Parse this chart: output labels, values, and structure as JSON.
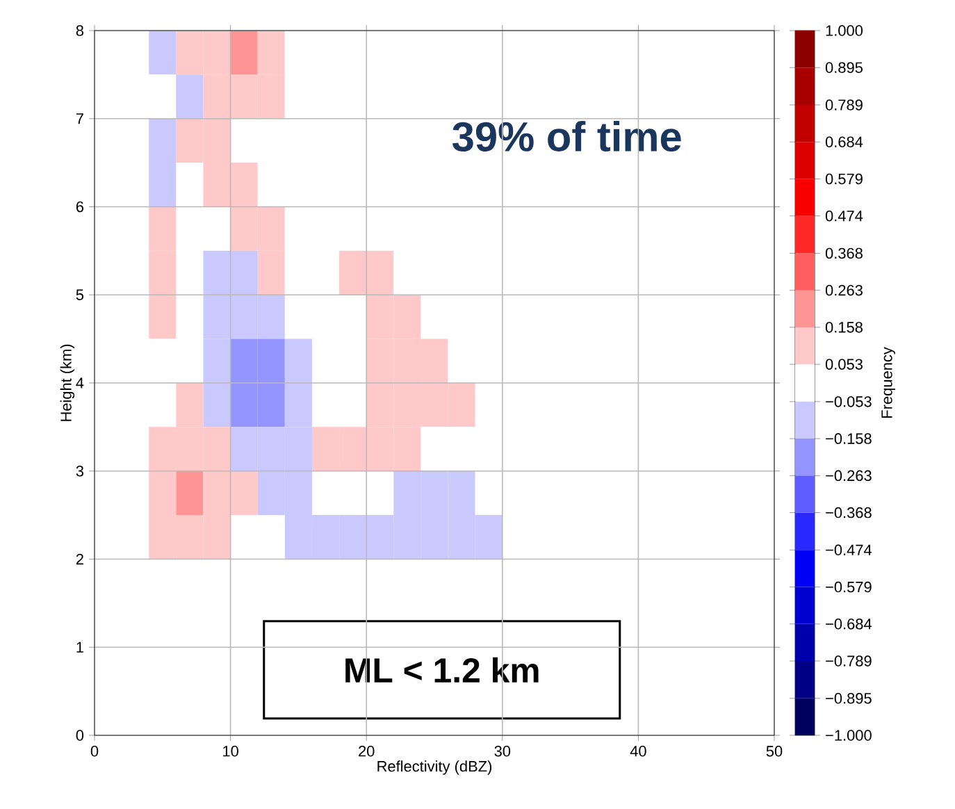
{
  "chart_data": {
    "type": "heatmap",
    "xlabel": "Reflectivity (dBZ)",
    "ylabel": "Height (km)",
    "clabel": "Frequency",
    "annotations": [
      "39% of time",
      "ML < 1.2 km"
    ],
    "x": [
      1,
      3,
      5,
      7,
      9,
      11,
      13,
      15,
      17,
      19,
      21,
      23,
      25,
      27,
      29,
      31,
      33,
      35,
      37,
      39,
      41,
      43,
      45,
      47,
      49
    ],
    "y": [
      7.75,
      7.25,
      6.75,
      6.25,
      5.75,
      5.25,
      4.75,
      4.25,
      3.75,
      3.25,
      2.75,
      2.25,
      1.75,
      1.25,
      0.75,
      0.25
    ],
    "cells": [
      [
        0,
        0,
        -0.1,
        0.1,
        0.1,
        0.2,
        0.1,
        0,
        0,
        0,
        0,
        0,
        0,
        0,
        0,
        0,
        0,
        0,
        0,
        0,
        0,
        0,
        0,
        0,
        0
      ],
      [
        0,
        0,
        0,
        -0.1,
        0.1,
        0.1,
        0.1,
        0,
        0,
        0,
        0,
        0,
        0,
        0,
        0,
        0,
        0,
        0,
        0,
        0,
        0,
        0,
        0,
        0,
        0
      ],
      [
        0,
        0,
        -0.1,
        0.1,
        0.1,
        0,
        0,
        0,
        0,
        0,
        0,
        0,
        0,
        0,
        0,
        0,
        0,
        0,
        0,
        0,
        0,
        0,
        0,
        0,
        0
      ],
      [
        0,
        0,
        -0.1,
        0,
        0.1,
        0.1,
        0,
        0,
        0,
        0,
        0,
        0,
        0,
        0,
        0,
        0,
        0,
        0,
        0,
        0,
        0,
        0,
        0,
        0,
        0
      ],
      [
        0,
        0,
        0.1,
        0,
        0,
        0.1,
        0.1,
        0,
        0,
        0,
        0,
        0,
        0,
        0,
        0,
        0,
        0,
        0,
        0,
        0,
        0,
        0,
        0,
        0,
        0
      ],
      [
        0,
        0,
        0.1,
        0,
        -0.1,
        -0.1,
        0.1,
        0,
        0,
        0.1,
        0.1,
        0,
        0,
        0,
        0,
        0,
        0,
        0,
        0,
        0,
        0,
        0,
        0,
        0,
        0
      ],
      [
        0,
        0,
        0.1,
        0,
        -0.1,
        -0.1,
        -0.1,
        0,
        0,
        0,
        0.1,
        0.1,
        0,
        0,
        0,
        0,
        0,
        0,
        0,
        0,
        0,
        0,
        0,
        0,
        0
      ],
      [
        0,
        0,
        0,
        0,
        -0.1,
        -0.2,
        -0.2,
        -0.1,
        0,
        0,
        0.1,
        0.1,
        0.1,
        0,
        0,
        0,
        0,
        0,
        0,
        0,
        0,
        0,
        0,
        0,
        0
      ],
      [
        0,
        0,
        0,
        0.1,
        -0.1,
        -0.2,
        -0.2,
        -0.1,
        0,
        0,
        0.1,
        0.1,
        0.1,
        0.1,
        0,
        0,
        0,
        0,
        0,
        0,
        0,
        0,
        0,
        0,
        0
      ],
      [
        0,
        0,
        0.1,
        0.1,
        0.1,
        -0.1,
        -0.1,
        -0.1,
        0.1,
        0.1,
        0.1,
        0.1,
        0,
        0,
        0,
        0,
        0,
        0,
        0,
        0,
        0,
        0,
        0,
        0,
        0
      ],
      [
        0,
        0,
        0.1,
        0.2,
        0.1,
        0.1,
        -0.1,
        -0.1,
        0,
        0,
        0,
        -0.1,
        -0.1,
        -0.1,
        0,
        0,
        0,
        0,
        0,
        0,
        0,
        0,
        0,
        0,
        0
      ],
      [
        0,
        0,
        0.1,
        0.1,
        0.1,
        0,
        0,
        -0.1,
        -0.1,
        -0.1,
        -0.1,
        -0.1,
        -0.1,
        -0.1,
        -0.1,
        0,
        0,
        0,
        0,
        0,
        0,
        0,
        0,
        0,
        0
      ],
      [
        0,
        0,
        0,
        0,
        0,
        0,
        0,
        0,
        0,
        0,
        0,
        0,
        0,
        0,
        0,
        0,
        0,
        0,
        0,
        0,
        0,
        0,
        0,
        0,
        0
      ],
      [
        0,
        0,
        0,
        0,
        0,
        0,
        0,
        0,
        0,
        0,
        0,
        0,
        0,
        0,
        0,
        0,
        0,
        0,
        0,
        0,
        0,
        0,
        0,
        0,
        0
      ],
      [
        0,
        0,
        0,
        0,
        0,
        0,
        0,
        0,
        0,
        0,
        0,
        0,
        0,
        0,
        0,
        0,
        0,
        0,
        0,
        0,
        0,
        0,
        0,
        0,
        0
      ],
      [
        0,
        0,
        0,
        0,
        0,
        0,
        0,
        0,
        0,
        0,
        0,
        0,
        0,
        0,
        0,
        0,
        0,
        0,
        0,
        0,
        0,
        0,
        0,
        0,
        0
      ]
    ],
    "xlim": [
      0,
      50
    ],
    "ylim": [
      0,
      8
    ],
    "xticks": [
      0,
      10,
      20,
      30,
      40,
      50
    ],
    "yticks": [
      0,
      1,
      2,
      3,
      4,
      5,
      6,
      7,
      8
    ],
    "clim": [
      -1,
      1
    ],
    "cticks": [
      {
        "value": -1,
        "label": "−1.000"
      },
      {
        "value": -0.895,
        "label": "−0.895"
      },
      {
        "value": -0.789,
        "label": "−0.789"
      },
      {
        "value": -0.684,
        "label": "−0.684"
      },
      {
        "value": -0.579,
        "label": "−0.579"
      },
      {
        "value": -0.474,
        "label": "−0.474"
      },
      {
        "value": -0.368,
        "label": "−0.368"
      },
      {
        "value": -0.263,
        "label": "−0.263"
      },
      {
        "value": -0.158,
        "label": "−0.158"
      },
      {
        "value": -0.053,
        "label": "−0.053"
      },
      {
        "value": 0.053,
        "label": "0.053"
      },
      {
        "value": 0.158,
        "label": "0.158"
      },
      {
        "value": 0.263,
        "label": "0.263"
      },
      {
        "value": 0.368,
        "label": "0.368"
      },
      {
        "value": 0.474,
        "label": "0.474"
      },
      {
        "value": 0.579,
        "label": "0.579"
      },
      {
        "value": 0.684,
        "label": "0.684"
      },
      {
        "value": 0.789,
        "label": "0.789"
      },
      {
        "value": 0.895,
        "label": "0.895"
      },
      {
        "value": 1,
        "label": "1.000"
      }
    ],
    "grid": true
  }
}
